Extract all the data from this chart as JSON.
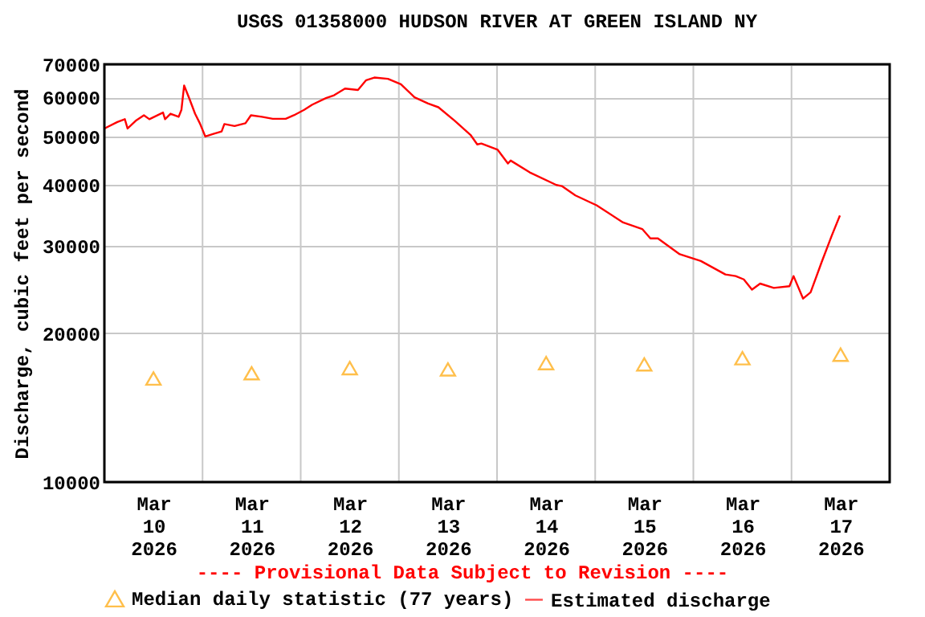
{
  "chart_data": {
    "type": "line",
    "title": "USGS 01358000 HUDSON RIVER AT GREEN ISLAND NY",
    "ylabel": "Discharge, cubic feet per second",
    "annotations": [
      "---- Provisional Data Subject to Revision ----"
    ],
    "log": "y",
    "grid": true,
    "legend": "bottom",
    "xlim": [
      "2026-03-10T00:00",
      "2026-03-18T00:00"
    ],
    "xticks": [
      {
        "value": "2026-03-10T12:00",
        "label": "Mar 10 2026"
      },
      {
        "value": "2026-03-11T12:00",
        "label": "Mar 11 2026"
      },
      {
        "value": "2026-03-12T12:00",
        "label": "Mar 12 2026"
      },
      {
        "value": "2026-03-13T12:00",
        "label": "Mar 13 2026"
      },
      {
        "value": "2026-03-14T12:00",
        "label": "Mar 14 2026"
      },
      {
        "value": "2026-03-15T12:00",
        "label": "Mar 15 2026"
      },
      {
        "value": "2026-03-16T12:00",
        "label": "Mar 16 2026"
      },
      {
        "value": "2026-03-17T12:00",
        "label": "Mar 17 2026"
      },
      {
        "value": "2026-03-11T00:00",
        "label": null
      },
      {
        "value": "2026-03-12T00:00",
        "label": null
      },
      {
        "value": "2026-03-13T00:00",
        "label": null
      },
      {
        "value": "2026-03-14T00:00",
        "label": null
      },
      {
        "value": "2026-03-15T00:00",
        "label": null
      },
      {
        "value": "2026-03-16T00:00",
        "label": null
      },
      {
        "value": "2026-03-17T00:00",
        "label": null
      }
    ],
    "ylim": [
      10000,
      70000
    ],
    "yticks": [
      10000,
      20000,
      30000,
      40000,
      50000,
      60000,
      70000
    ],
    "series": [
      {
        "name": "Median daily statistic (77 years)",
        "type": "scatter",
        "marker": "triangle",
        "color": "#ffa500",
        "x": [
          "2026-03-10T12:00",
          "2026-03-11T12:00",
          "2026-03-12T12:00",
          "2026-03-13T12:00",
          "2026-03-14T12:00",
          "2026-03-15T12:00",
          "2026-03-16T12:00",
          "2026-03-17T12:00"
        ],
        "values": [
          16200,
          16600,
          17000,
          16900,
          17400,
          17300,
          17800,
          18100
        ]
      },
      {
        "name": "Estimated discharge",
        "type": "line",
        "color": "#ff0000",
        "x": [
          "2026-03-10T00:00",
          "2026-03-10T03:10",
          "2026-03-10T05:00",
          "2026-03-10T05:40",
          "2026-03-10T07:40",
          "2026-03-10T09:40",
          "2026-03-10T11:00",
          "2026-03-10T14:20",
          "2026-03-10T14:50",
          "2026-03-10T16:10",
          "2026-03-10T18:10",
          "2026-03-10T18:50",
          "2026-03-10T19:30",
          "2026-03-10T20:50",
          "2026-03-10T22:10",
          "2026-03-10T23:20",
          "2026-03-11T00:40",
          "2026-03-11T02:40",
          "2026-03-11T04:40",
          "2026-03-11T05:20",
          "2026-03-11T07:50",
          "2026-03-11T10:30",
          "2026-03-11T11:50",
          "2026-03-11T14:30",
          "2026-03-11T17:10",
          "2026-03-11T20:20",
          "2026-03-11T22:20",
          "2026-03-12T00:50",
          "2026-03-12T02:50",
          "2026-03-12T06:10",
          "2026-03-12T08:10",
          "2026-03-12T10:50",
          "2026-03-12T14:00",
          "2026-03-12T16:00",
          "2026-03-12T18:00",
          "2026-03-12T21:20",
          "2026-03-13T00:30",
          "2026-03-13T03:50",
          "2026-03-13T07:10",
          "2026-03-13T09:40",
          "2026-03-13T13:40",
          "2026-03-13T17:30",
          "2026-03-13T19:10",
          "2026-03-13T20:10",
          "2026-03-14T00:10",
          "2026-03-14T02:40",
          "2026-03-14T03:20",
          "2026-03-14T08:00",
          "2026-03-14T14:30",
          "2026-03-14T15:50",
          "2026-03-14T19:10",
          "2026-03-15T00:20",
          "2026-03-15T06:50",
          "2026-03-15T11:30",
          "2026-03-15T13:30",
          "2026-03-15T15:20",
          "2026-03-15T20:40",
          "2026-03-16T01:50",
          "2026-03-16T07:50",
          "2026-03-16T10:20",
          "2026-03-16T12:20",
          "2026-03-16T14:20",
          "2026-03-16T16:20",
          "2026-03-16T19:40",
          "2026-03-16T23:30",
          "2026-03-17T00:30",
          "2026-03-17T02:50",
          "2026-03-17T04:40",
          "2026-03-17T07:20",
          "2026-03-17T09:50",
          "2026-03-17T11:50"
        ],
        "values": [
          51900,
          53500,
          54200,
          51900,
          53800,
          55200,
          54200,
          55900,
          54200,
          55600,
          54800,
          56600,
          63400,
          59500,
          55600,
          53200,
          50000,
          50600,
          51200,
          53000,
          52500,
          53200,
          55200,
          54800,
          54300,
          54300,
          55200,
          56600,
          58000,
          59800,
          60600,
          62500,
          62100,
          65000,
          65800,
          65400,
          63800,
          60000,
          58300,
          57300,
          53800,
          50400,
          48200,
          48400,
          47000,
          44100,
          44700,
          42300,
          39900,
          39700,
          38000,
          36300,
          33500,
          32500,
          31100,
          31100,
          28900,
          28000,
          26300,
          26100,
          25700,
          24500,
          25200,
          24700,
          24900,
          26100,
          23500,
          24200,
          27800,
          31500,
          34600
        ]
      }
    ]
  }
}
